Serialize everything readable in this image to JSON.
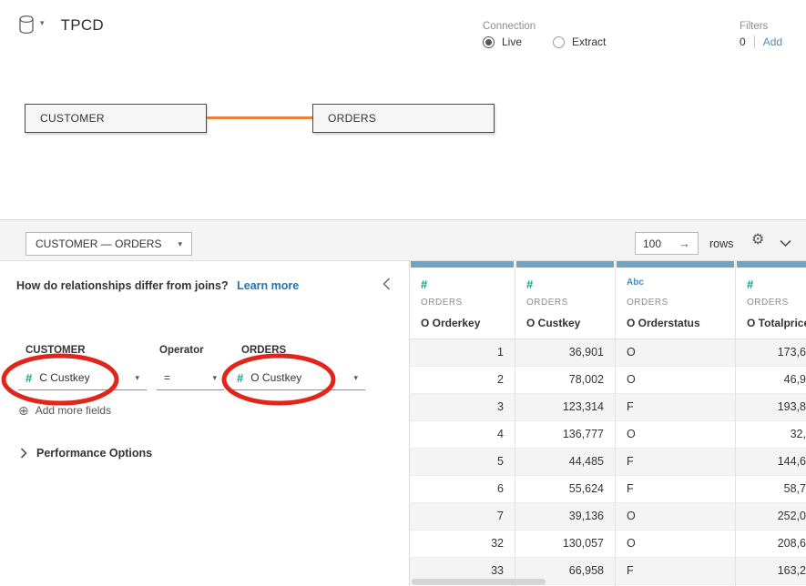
{
  "header": {
    "title": "TPCD",
    "connection": {
      "label": "Connection",
      "options": [
        {
          "label": "Live",
          "selected": true
        },
        {
          "label": "Extract",
          "selected": false
        }
      ]
    },
    "filters": {
      "label": "Filters",
      "count": "0",
      "add_label": "Add"
    }
  },
  "canvas": {
    "tables": [
      {
        "name": "CUSTOMER"
      },
      {
        "name": "ORDERS"
      }
    ],
    "link_color": "#e8813a"
  },
  "panel": {
    "relationship_selector": "CUSTOMER — ORDERS",
    "row_count": "100",
    "rows_label": "rows",
    "question": "How do relationships differ from joins?",
    "learn_more": "Learn more",
    "left_table_label": "CUSTOMER",
    "operator_label": "Operator",
    "right_table_label": "ORDERS",
    "left_field": "C Custkey",
    "operator": "=",
    "right_field": "O Custkey",
    "add_more_fields": "Add more fields",
    "performance_options": "Performance Options",
    "annotation_color": "#e1251b"
  },
  "grid": {
    "columns": [
      {
        "icon": "#",
        "type": "number",
        "table": "ORDERS",
        "field": "O Orderkey",
        "align": "right"
      },
      {
        "icon": "#",
        "type": "number",
        "table": "ORDERS",
        "field": "O Custkey",
        "align": "right"
      },
      {
        "icon": "Abc",
        "type": "string",
        "table": "ORDERS",
        "field": "O Orderstatus",
        "align": "left"
      },
      {
        "icon": "#",
        "type": "number",
        "table": "ORDERS",
        "field": "O Totalprice",
        "align": "right"
      }
    ],
    "rows": [
      [
        "1",
        "36,901",
        "O",
        "173,6"
      ],
      [
        "2",
        "78,002",
        "O",
        "46,9"
      ],
      [
        "3",
        "123,314",
        "F",
        "193,8"
      ],
      [
        "4",
        "136,777",
        "O",
        "32,"
      ],
      [
        "5",
        "44,485",
        "F",
        "144,6"
      ],
      [
        "6",
        "55,624",
        "F",
        "58,7"
      ],
      [
        "7",
        "39,136",
        "O",
        "252,0"
      ],
      [
        "32",
        "130,057",
        "O",
        "208,6"
      ],
      [
        "33",
        "66,958",
        "F",
        "163,2"
      ]
    ]
  },
  "colors": {
    "accent_bar": "#6fa3c6",
    "number_icon": "#10a384",
    "string_icon": "#4c8cbe",
    "orange_link": "#e8813a",
    "annotation_red": "#e1251b"
  }
}
